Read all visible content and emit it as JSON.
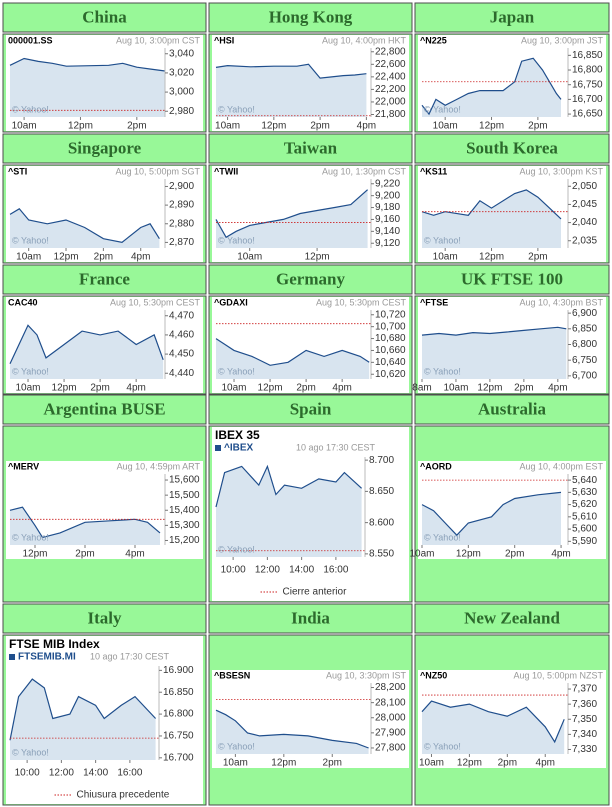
{
  "chart_data": [
    {
      "type": "line",
      "title": "China",
      "symbol": "000001.SS",
      "timestamp": "Aug 10, 3:00pm CST",
      "source": "© Yahoo!",
      "color": "#1f4e8c",
      "x": [
        9.5,
        10,
        10.5,
        11,
        11.5,
        13,
        13.5,
        14,
        14.5,
        15
      ],
      "values": [
        3028,
        3035,
        3032,
        3030,
        3027,
        3028,
        3030,
        3026,
        3024,
        3022
      ],
      "xlim": [
        9.5,
        15
      ],
      "ylim": [
        2974,
        3046
      ],
      "xticks": [
        {
          "value": 10,
          "label": "10am"
        },
        {
          "value": 12,
          "label": "12pm"
        },
        {
          "value": 14,
          "label": "2pm"
        }
      ],
      "yticks": [
        {
          "value": 3040,
          "label": "3,040"
        },
        {
          "value": 3020,
          "label": "3,020"
        },
        {
          "value": 3000,
          "label": "3,000"
        },
        {
          "value": 2980,
          "label": "2,980"
        }
      ],
      "previous_close": 2981
    },
    {
      "type": "line",
      "title": "Hong Kong",
      "symbol": "^HSI",
      "timestamp": "Aug 10, 4:00pm HKT",
      "source": "© Yahoo!",
      "color": "#1f4e8c",
      "x": [
        9.5,
        10,
        11,
        12,
        13,
        13.5,
        14,
        14.5,
        15,
        15.5,
        16
      ],
      "values": [
        22550,
        22580,
        22560,
        22570,
        22570,
        22600,
        22380,
        22400,
        22420,
        22430,
        22450
      ],
      "xlim": [
        9.5,
        16.2
      ],
      "ylim": [
        21760,
        22860
      ],
      "xticks": [
        {
          "value": 10,
          "label": "10am"
        },
        {
          "value": 12,
          "label": "12pm"
        },
        {
          "value": 14,
          "label": "2pm"
        },
        {
          "value": 16,
          "label": "4pm"
        }
      ],
      "yticks": [
        {
          "value": 22800,
          "label": "22,800"
        },
        {
          "value": 22600,
          "label": "22,600"
        },
        {
          "value": 22400,
          "label": "22,400"
        },
        {
          "value": 22200,
          "label": "22,200"
        },
        {
          "value": 22000,
          "label": "22,000"
        },
        {
          "value": 21800,
          "label": "21,800"
        }
      ],
      "previous_close": 21780
    },
    {
      "type": "line",
      "title": "Japan",
      "symbol": "^N225",
      "timestamp": "Aug 10, 3:00pm JST",
      "source": "© Yahoo!",
      "color": "#1f4e8c",
      "x": [
        9,
        9.3,
        9.6,
        10,
        10.5,
        11,
        11.5,
        12.5,
        13,
        13.3,
        13.8,
        14.2,
        14.5,
        14.8,
        15
      ],
      "values": [
        16680,
        16650,
        16700,
        16680,
        16700,
        16720,
        16730,
        16730,
        16760,
        16830,
        16840,
        16800,
        16760,
        16720,
        16700
      ],
      "xlim": [
        9,
        15.3
      ],
      "ylim": [
        16640,
        16875
      ],
      "xticks": [
        {
          "value": 10,
          "label": "10am"
        },
        {
          "value": 12,
          "label": "12pm"
        },
        {
          "value": 14,
          "label": "2pm"
        }
      ],
      "yticks": [
        {
          "value": 16850,
          "label": "16,850"
        },
        {
          "value": 16800,
          "label": "16,800"
        },
        {
          "value": 16750,
          "label": "16,750"
        },
        {
          "value": 16700,
          "label": "16,700"
        },
        {
          "value": 16650,
          "label": "16,650"
        }
      ],
      "previous_close": 16760
    },
    {
      "type": "line",
      "title": "Singapore",
      "symbol": "^STI",
      "timestamp": "Aug 10, 5:00pm SGT",
      "source": "© Yahoo!",
      "color": "#1f4e8c",
      "x": [
        9,
        9.5,
        10,
        11,
        12,
        13,
        14,
        15,
        16,
        16.5,
        17
      ],
      "values": [
        2885,
        2888,
        2882,
        2880,
        2882,
        2878,
        2872,
        2870,
        2878,
        2880,
        2872
      ],
      "xlim": [
        9,
        17.3
      ],
      "ylim": [
        2867,
        2904
      ],
      "xticks": [
        {
          "value": 10,
          "label": "10am"
        },
        {
          "value": 12,
          "label": "12pm"
        },
        {
          "value": 14,
          "label": "2pm"
        },
        {
          "value": 16,
          "label": "4pm"
        }
      ],
      "yticks": [
        {
          "value": 2900,
          "label": "2,900"
        },
        {
          "value": 2890,
          "label": "2,890"
        },
        {
          "value": 2880,
          "label": "2,880"
        },
        {
          "value": 2870,
          "label": "2,870"
        }
      ]
    },
    {
      "type": "line",
      "title": "Taiwan",
      "symbol": "^TWII",
      "timestamp": "Aug 10, 1:30pm CST",
      "source": "© Yahoo!",
      "color": "#1f4e8c",
      "x": [
        9,
        9.3,
        9.6,
        10,
        10.5,
        11,
        11.5,
        12,
        12.5,
        13,
        13.5
      ],
      "values": [
        9160,
        9130,
        9140,
        9150,
        9155,
        9160,
        9170,
        9175,
        9180,
        9185,
        9210
      ],
      "xlim": [
        9,
        13.6
      ],
      "ylim": [
        9112,
        9228
      ],
      "xticks": [
        {
          "value": 10,
          "label": "10am"
        },
        {
          "value": 12,
          "label": "12pm"
        }
      ],
      "yticks": [
        {
          "value": 9220,
          "label": "9,220"
        },
        {
          "value": 9200,
          "label": "9,200"
        },
        {
          "value": 9180,
          "label": "9,180"
        },
        {
          "value": 9160,
          "label": "9,160"
        },
        {
          "value": 9140,
          "label": "9,140"
        },
        {
          "value": 9120,
          "label": "9,120"
        }
      ],
      "previous_close": 9155
    },
    {
      "type": "line",
      "title": "South Korea",
      "symbol": "^KS11",
      "timestamp": "Aug 10, 3:00pm KST",
      "source": "© Yahoo!",
      "color": "#1f4e8c",
      "x": [
        9,
        9.5,
        10,
        11,
        11.5,
        12,
        13,
        13.5,
        14,
        14.5,
        15
      ],
      "values": [
        2043,
        2042,
        2043,
        2042,
        2046,
        2044,
        2048,
        2049,
        2047,
        2044,
        2041
      ],
      "xlim": [
        9,
        15.3
      ],
      "ylim": [
        2033,
        2052
      ],
      "xticks": [
        {
          "value": 10,
          "label": "10am"
        },
        {
          "value": 12,
          "label": "12pm"
        },
        {
          "value": 14,
          "label": "2pm"
        }
      ],
      "yticks": [
        {
          "value": 2050,
          "label": "2,050"
        },
        {
          "value": 2045,
          "label": "2,045"
        },
        {
          "value": 2040,
          "label": "2,040"
        },
        {
          "value": 2035,
          "label": "2,035"
        }
      ],
      "previous_close": 2043
    },
    {
      "type": "line",
      "title": "France",
      "symbol": "CAC40",
      "timestamp": "Aug 10, 5:30pm CEST",
      "source": "© Yahoo!",
      "color": "#1f4e8c",
      "x": [
        9,
        9.5,
        10,
        10.5,
        11,
        12,
        13,
        14,
        15,
        16,
        17,
        17.5
      ],
      "values": [
        4445,
        4455,
        4465,
        4460,
        4448,
        4455,
        4462,
        4460,
        4462,
        4455,
        4460,
        4447
      ],
      "xlim": [
        9,
        17.6
      ],
      "ylim": [
        4437,
        4473
      ],
      "xticks": [
        {
          "value": 10,
          "label": "10am"
        },
        {
          "value": 12,
          "label": "12pm"
        },
        {
          "value": 14,
          "label": "2pm"
        },
        {
          "value": 16,
          "label": "4pm"
        }
      ],
      "yticks": [
        {
          "value": 4470,
          "label": "4,470"
        },
        {
          "value": 4460,
          "label": "4,460"
        },
        {
          "value": 4450,
          "label": "4,450"
        },
        {
          "value": 4440,
          "label": "4,440"
        }
      ]
    },
    {
      "type": "line",
      "title": "Germany",
      "symbol": "^GDAXI",
      "timestamp": "Aug 10, 5:30pm CEST",
      "source": "© Yahoo!",
      "color": "#1f4e8c",
      "x": [
        9,
        9.5,
        10,
        11,
        12,
        13,
        14,
        15,
        16,
        17,
        17.5
      ],
      "values": [
        10680,
        10670,
        10660,
        10650,
        10635,
        10640,
        10660,
        10650,
        10660,
        10650,
        10640
      ],
      "xlim": [
        9,
        17.6
      ],
      "ylim": [
        10612,
        10728
      ],
      "xticks": [
        {
          "value": 10,
          "label": "10am"
        },
        {
          "value": 12,
          "label": "12pm"
        },
        {
          "value": 14,
          "label": "2pm"
        },
        {
          "value": 16,
          "label": "4pm"
        }
      ],
      "yticks": [
        {
          "value": 10720,
          "label": "10,720"
        },
        {
          "value": 10700,
          "label": "10,700"
        },
        {
          "value": 10680,
          "label": "10,680"
        },
        {
          "value": 10660,
          "label": "10,660"
        },
        {
          "value": 10640,
          "label": "10,640"
        },
        {
          "value": 10620,
          "label": "10,620"
        }
      ],
      "previous_close": 10705
    },
    {
      "type": "line",
      "title": "UK FTSE 100",
      "symbol": "^FTSE",
      "timestamp": "Aug 10, 4:30pm BST",
      "source": "© Yahoo!",
      "color": "#1f4e8c",
      "x": [
        8,
        9,
        10,
        11,
        12,
        13,
        14,
        15,
        16,
        16.5
      ],
      "values": [
        6830,
        6835,
        6830,
        6838,
        6835,
        6840,
        6845,
        6850,
        6855,
        6850
      ],
      "xlim": [
        8,
        16.6
      ],
      "ylim": [
        6690,
        6910
      ],
      "xticks": [
        {
          "value": 8,
          "label": "8am"
        },
        {
          "value": 10,
          "label": "10am"
        },
        {
          "value": 12,
          "label": "12pm"
        },
        {
          "value": 14,
          "label": "2pm"
        },
        {
          "value": 16,
          "label": "4pm"
        }
      ],
      "yticks": [
        {
          "value": 6900,
          "label": "6,900"
        },
        {
          "value": 6850,
          "label": "6,850"
        },
        {
          "value": 6800,
          "label": "6,800"
        },
        {
          "value": 6750,
          "label": "6,750"
        },
        {
          "value": 6700,
          "label": "6,700"
        }
      ]
    },
    {
      "type": "line",
      "title": "Argentina BUSE",
      "symbol": "^MERV",
      "timestamp": "Aug 10, 4:59pm ART",
      "source": "© Yahoo!",
      "color": "#1f4e8c",
      "x": [
        11,
        11.5,
        12,
        12.3,
        13,
        14,
        15,
        16,
        16.5,
        17
      ],
      "values": [
        15400,
        15420,
        15300,
        15220,
        15250,
        15320,
        15330,
        15340,
        15320,
        15250
      ],
      "xlim": [
        11,
        17.2
      ],
      "ylim": [
        15170,
        15640
      ],
      "xticks": [
        {
          "value": 12,
          "label": "12pm"
        },
        {
          "value": 14,
          "label": "2pm"
        },
        {
          "value": 16,
          "label": "4pm"
        }
      ],
      "yticks": [
        {
          "value": 15600,
          "label": "15,600"
        },
        {
          "value": 15500,
          "label": "15,500"
        },
        {
          "value": 15400,
          "label": "15,400"
        },
        {
          "value": 15300,
          "label": "15,300"
        },
        {
          "value": 15200,
          "label": "15,200"
        }
      ],
      "previous_close": 15340
    },
    {
      "type": "line",
      "title": "Spain",
      "heading": "IBEX 35",
      "symbol": "^IBEX",
      "timestamp": "10 ago 17:30 CEST",
      "source": "© Yahoo!",
      "legend": "Cierre anterior",
      "color": "#1f4e8c",
      "x": [
        9,
        9.5,
        10.5,
        11.5,
        12,
        12.5,
        13,
        14,
        15,
        16,
        16.5,
        17.5
      ],
      "values": [
        8625,
        8680,
        8690,
        8660,
        8690,
        8645,
        8660,
        8655,
        8670,
        8665,
        8680,
        8655
      ],
      "xlim": [
        9,
        17.7
      ],
      "ylim": [
        8545,
        8705
      ],
      "xticks": [
        {
          "value": 10,
          "label": "10:00"
        },
        {
          "value": 12,
          "label": "12:00"
        },
        {
          "value": 14,
          "label": "14:00"
        },
        {
          "value": 16,
          "label": "16:00"
        }
      ],
      "yticks": [
        {
          "value": 8700,
          "label": "8.700"
        },
        {
          "value": 8650,
          "label": "8.650"
        },
        {
          "value": 8600,
          "label": "8.600"
        },
        {
          "value": 8550,
          "label": "8.550"
        }
      ],
      "previous_close": 8555
    },
    {
      "type": "line",
      "title": "Australia",
      "symbol": "^AORD",
      "timestamp": "Aug 10, 4:00pm EST",
      "source": "© Yahoo!",
      "color": "#1f4e8c",
      "x": [
        10,
        10.5,
        11,
        11.5,
        12,
        13,
        13.5,
        14,
        15,
        16
      ],
      "values": [
        5620,
        5615,
        5605,
        5595,
        5605,
        5610,
        5620,
        5625,
        5628,
        5630
      ],
      "xlim": [
        10,
        16.3
      ],
      "ylim": [
        5587,
        5645
      ],
      "xticks": [
        {
          "value": 10,
          "label": "10am"
        },
        {
          "value": 12,
          "label": "12pm"
        },
        {
          "value": 14,
          "label": "2pm"
        },
        {
          "value": 16,
          "label": "4pm"
        }
      ],
      "yticks": [
        {
          "value": 5640,
          "label": "5,640"
        },
        {
          "value": 5630,
          "label": "5,630"
        },
        {
          "value": 5620,
          "label": "5,620"
        },
        {
          "value": 5610,
          "label": "5,610"
        },
        {
          "value": 5600,
          "label": "5,600"
        },
        {
          "value": 5590,
          "label": "5,590"
        }
      ],
      "previous_close": 5640
    },
    {
      "type": "line",
      "title": "Italy",
      "heading": "FTSE MIB Index",
      "symbol": "FTSEMIB.MI",
      "timestamp": "10 ago 17:30 CEST",
      "source": "© Yahoo!",
      "legend": "Chiusura precedente",
      "color": "#1f4e8c",
      "x": [
        9,
        9.5,
        10.3,
        11,
        11.5,
        12.5,
        13,
        14,
        14.5,
        15.5,
        16.3,
        17.5
      ],
      "values": [
        16740,
        16840,
        16880,
        16860,
        16790,
        16800,
        16840,
        16820,
        16790,
        16820,
        16840,
        16790
      ],
      "xlim": [
        9,
        17.7
      ],
      "ylim": [
        16695,
        16910
      ],
      "xticks": [
        {
          "value": 10,
          "label": "10:00"
        },
        {
          "value": 12,
          "label": "12:00"
        },
        {
          "value": 14,
          "label": "14:00"
        },
        {
          "value": 16,
          "label": "16:00"
        }
      ],
      "yticks": [
        {
          "value": 16900,
          "label": "16.900"
        },
        {
          "value": 16850,
          "label": "16.850"
        },
        {
          "value": 16800,
          "label": "16.800"
        },
        {
          "value": 16750,
          "label": "16.750"
        },
        {
          "value": 16700,
          "label": "16.700"
        }
      ],
      "previous_close": 16745
    },
    {
      "type": "line",
      "title": "India",
      "symbol": "^BSESN",
      "timestamp": "Aug 10, 3:30pm IST",
      "source": "© Yahoo!",
      "color": "#1f4e8c",
      "x": [
        9.2,
        9.6,
        10,
        10.5,
        11,
        12,
        13,
        14,
        15,
        15.5
      ],
      "values": [
        28050,
        28020,
        27980,
        27900,
        27880,
        27890,
        27880,
        27850,
        27830,
        27800
      ],
      "xlim": [
        9.2,
        15.6
      ],
      "ylim": [
        27760,
        28230
      ],
      "xticks": [
        {
          "value": 10,
          "label": "10am"
        },
        {
          "value": 12,
          "label": "12pm"
        },
        {
          "value": 14,
          "label": "2pm"
        }
      ],
      "yticks": [
        {
          "value": 28200,
          "label": "28,200"
        },
        {
          "value": 28100,
          "label": "28,100"
        },
        {
          "value": 28000,
          "label": "28,000"
        },
        {
          "value": 27900,
          "label": "27,900"
        },
        {
          "value": 27800,
          "label": "27,800"
        }
      ],
      "previous_close": 28120
    },
    {
      "type": "line",
      "title": "New Zealand",
      "symbol": "^NZ50",
      "timestamp": "Aug 10, 5:00pm NZST",
      "source": "© Yahoo!",
      "color": "#1f4e8c",
      "x": [
        9.5,
        10,
        11,
        12,
        13,
        14,
        15,
        16,
        16.5,
        17
      ],
      "values": [
        7355,
        7362,
        7358,
        7360,
        7355,
        7352,
        7358,
        7345,
        7335,
        7350
      ],
      "xlim": [
        9.5,
        17.2
      ],
      "ylim": [
        7327,
        7374
      ],
      "xticks": [
        {
          "value": 10,
          "label": "10am"
        },
        {
          "value": 12,
          "label": "12pm"
        },
        {
          "value": 14,
          "label": "2pm"
        },
        {
          "value": 16,
          "label": "4pm"
        }
      ],
      "yticks": [
        {
          "value": 7370,
          "label": "7,370"
        },
        {
          "value": 7360,
          "label": "7,360"
        },
        {
          "value": 7350,
          "label": "7,350"
        },
        {
          "value": 7340,
          "label": "7,340"
        },
        {
          "value": 7330,
          "label": "7,330"
        }
      ],
      "previous_close": 7366
    }
  ]
}
